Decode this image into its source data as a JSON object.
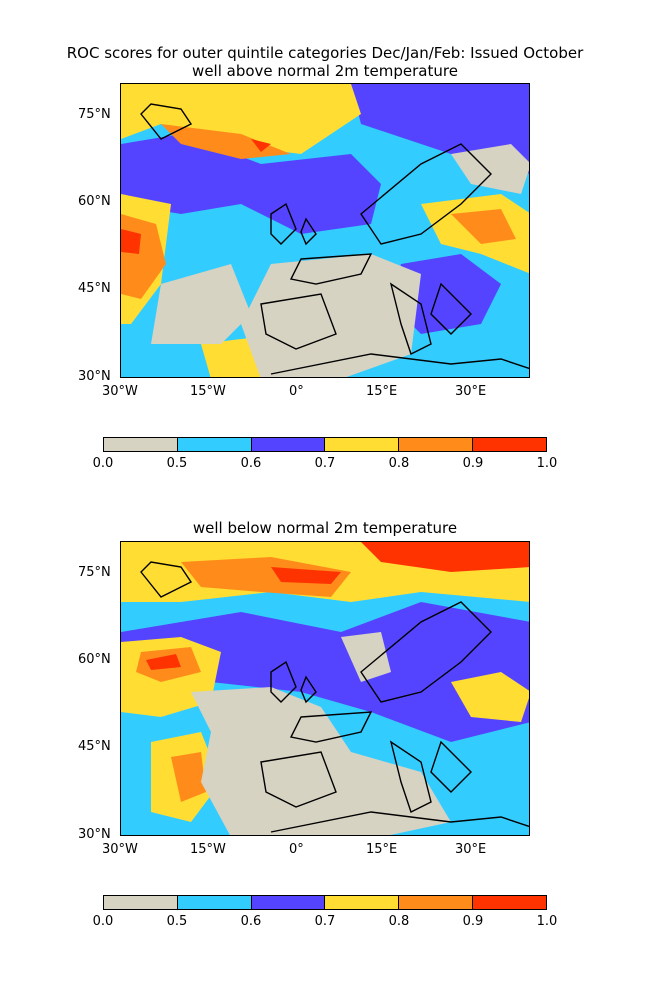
{
  "title_line1": "ROC scores for outer quintile categories Dec/Jan/Feb: Issued October",
  "panels": [
    {
      "title": "well above normal 2m temperature",
      "lat_labels": [
        "75°N",
        "60°N",
        "45°N",
        "30°N"
      ],
      "lon_labels": [
        "30°W",
        "15°W",
        "0°",
        "15°E",
        "30°E"
      ]
    },
    {
      "title": "well below normal 2m temperature",
      "lat_labels": [
        "75°N",
        "60°N",
        "45°N",
        "30°N"
      ],
      "lon_labels": [
        "30°W",
        "15°W",
        "0°",
        "15°E",
        "30°E"
      ]
    }
  ],
  "colorbar": {
    "ticks": [
      "0.0",
      "0.5",
      "0.6",
      "0.7",
      "0.8",
      "0.9",
      "1.0"
    ],
    "colors": [
      "#d6d3c3",
      "#33ccff",
      "#5544ff",
      "#ffdd33",
      "#ff8c1a",
      "#ff3300"
    ]
  }
}
